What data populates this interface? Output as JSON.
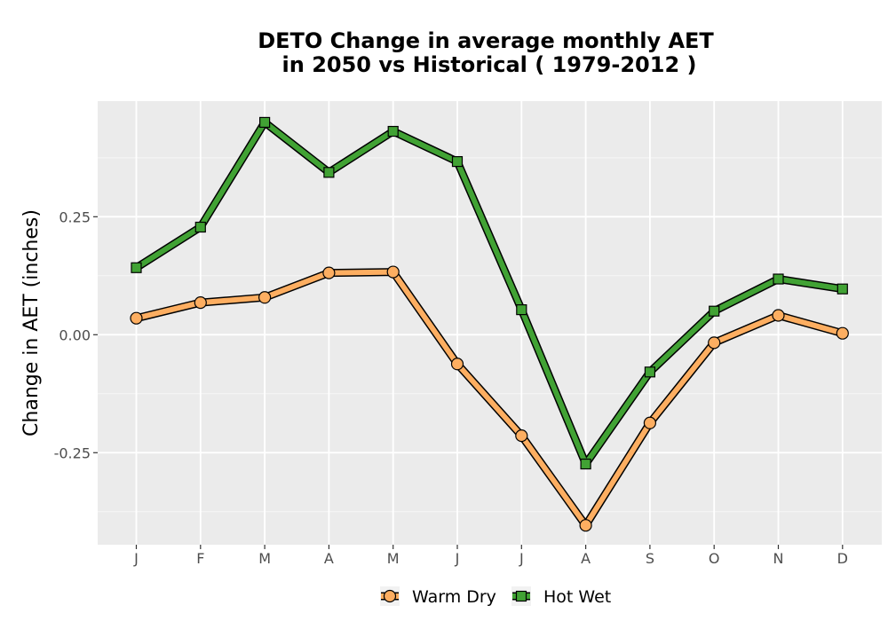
{
  "chart_data": {
    "type": "line",
    "title_line1": "DETO  Change in average monthly AET",
    "title_line2": "in 2050 vs Historical ( 1979-2012 )",
    "ylabel": "Change in AET (inches)",
    "xlabel": "",
    "categories": [
      "J",
      "F",
      "M",
      "A",
      "M",
      "J",
      "J",
      "A",
      "S",
      "O",
      "N",
      "D"
    ],
    "ylim": [
      -0.445,
      0.495
    ],
    "yticks": [
      -0.25,
      0,
      0.25
    ],
    "ytick_labels": [
      "-0.25",
      "0.00",
      "0.25"
    ],
    "grid": true,
    "legend_position": "bottom",
    "series": [
      {
        "name": "Warm Dry",
        "marker": "circle",
        "color": "#fdae61",
        "values": [
          0.035,
          0.068,
          0.079,
          0.131,
          0.133,
          -0.062,
          -0.214,
          -0.404,
          -0.187,
          -0.017,
          0.041,
          0.003
        ]
      },
      {
        "name": "Hot Wet",
        "marker": "square",
        "color": "#41a234",
        "values": [
          0.142,
          0.228,
          0.45,
          0.344,
          0.431,
          0.367,
          0.053,
          -0.274,
          -0.079,
          0.05,
          0.118,
          0.097
        ]
      }
    ]
  }
}
